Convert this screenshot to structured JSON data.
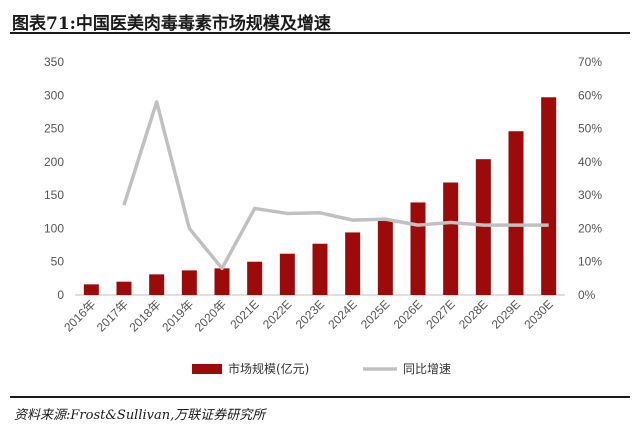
{
  "title": "图表71:中国医美肉毒毒素市场规模及增速",
  "source": "资料来源:Frost&Sullivan,万联证券研究所",
  "colors": {
    "bar": "#9c0a0a",
    "line": "#c0c0c0"
  },
  "chart_data": {
    "type": "bar",
    "categories": [
      "2016年",
      "2017年",
      "2018年",
      "2019年",
      "2020年",
      "2021E",
      "2022E",
      "2023E",
      "2024E",
      "2025E",
      "2026E",
      "2027E",
      "2028E",
      "2029E",
      "2030E"
    ],
    "series": [
      {
        "name": "市场规模(亿元)",
        "type": "bar",
        "axis": "left",
        "values": [
          16,
          20,
          31,
          37,
          40,
          50,
          62,
          77,
          94,
          112,
          139,
          169,
          204,
          246,
          297
        ]
      },
      {
        "name": "同比增速",
        "type": "line",
        "axis": "right",
        "values": [
          null,
          0.27,
          0.58,
          0.2,
          0.08,
          0.26,
          0.245,
          0.247,
          0.225,
          0.228,
          0.21,
          0.218,
          0.21,
          0.21,
          0.21
        ]
      }
    ],
    "ylim": [
      0,
      350
    ],
    "y2lim": [
      0,
      0.7
    ],
    "yticks": [
      "0",
      "50",
      "100",
      "150",
      "200",
      "250",
      "300",
      "350"
    ],
    "y2ticks": [
      "0%",
      "10%",
      "20%",
      "30%",
      "40%",
      "50%",
      "60%",
      "70%"
    ],
    "legend_position": "bottom"
  }
}
